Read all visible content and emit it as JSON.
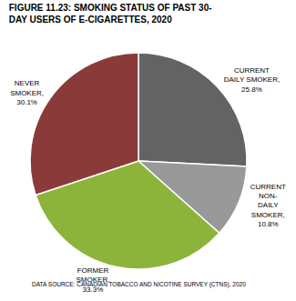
{
  "chart_data": {
    "type": "pie",
    "title": "FIGURE 11.23: SMOKING STATUS OF PAST 30-\nDAY USERS OF E-CIGARETTES, 2020",
    "categories": [
      "CURRENT\nDAILY SMOKER,\n25.8%",
      "CURRENT\nNON-\nDAILY\nSMOKER,\n10.8%",
      "FORMER\nSMOKER,\n33.3%",
      "NEVER\nSMOKER,\n30.1%"
    ],
    "values": [
      25.8,
      10.8,
      33.3,
      30.1
    ],
    "colors": [
      "#636363",
      "#999999",
      "#8db43a",
      "#8b3a3a"
    ],
    "annotations": [
      "DATA SOURCE: CANADIAN TOBACCO AND NICOTINE SURVEY (CTNS), 2020"
    ]
  }
}
